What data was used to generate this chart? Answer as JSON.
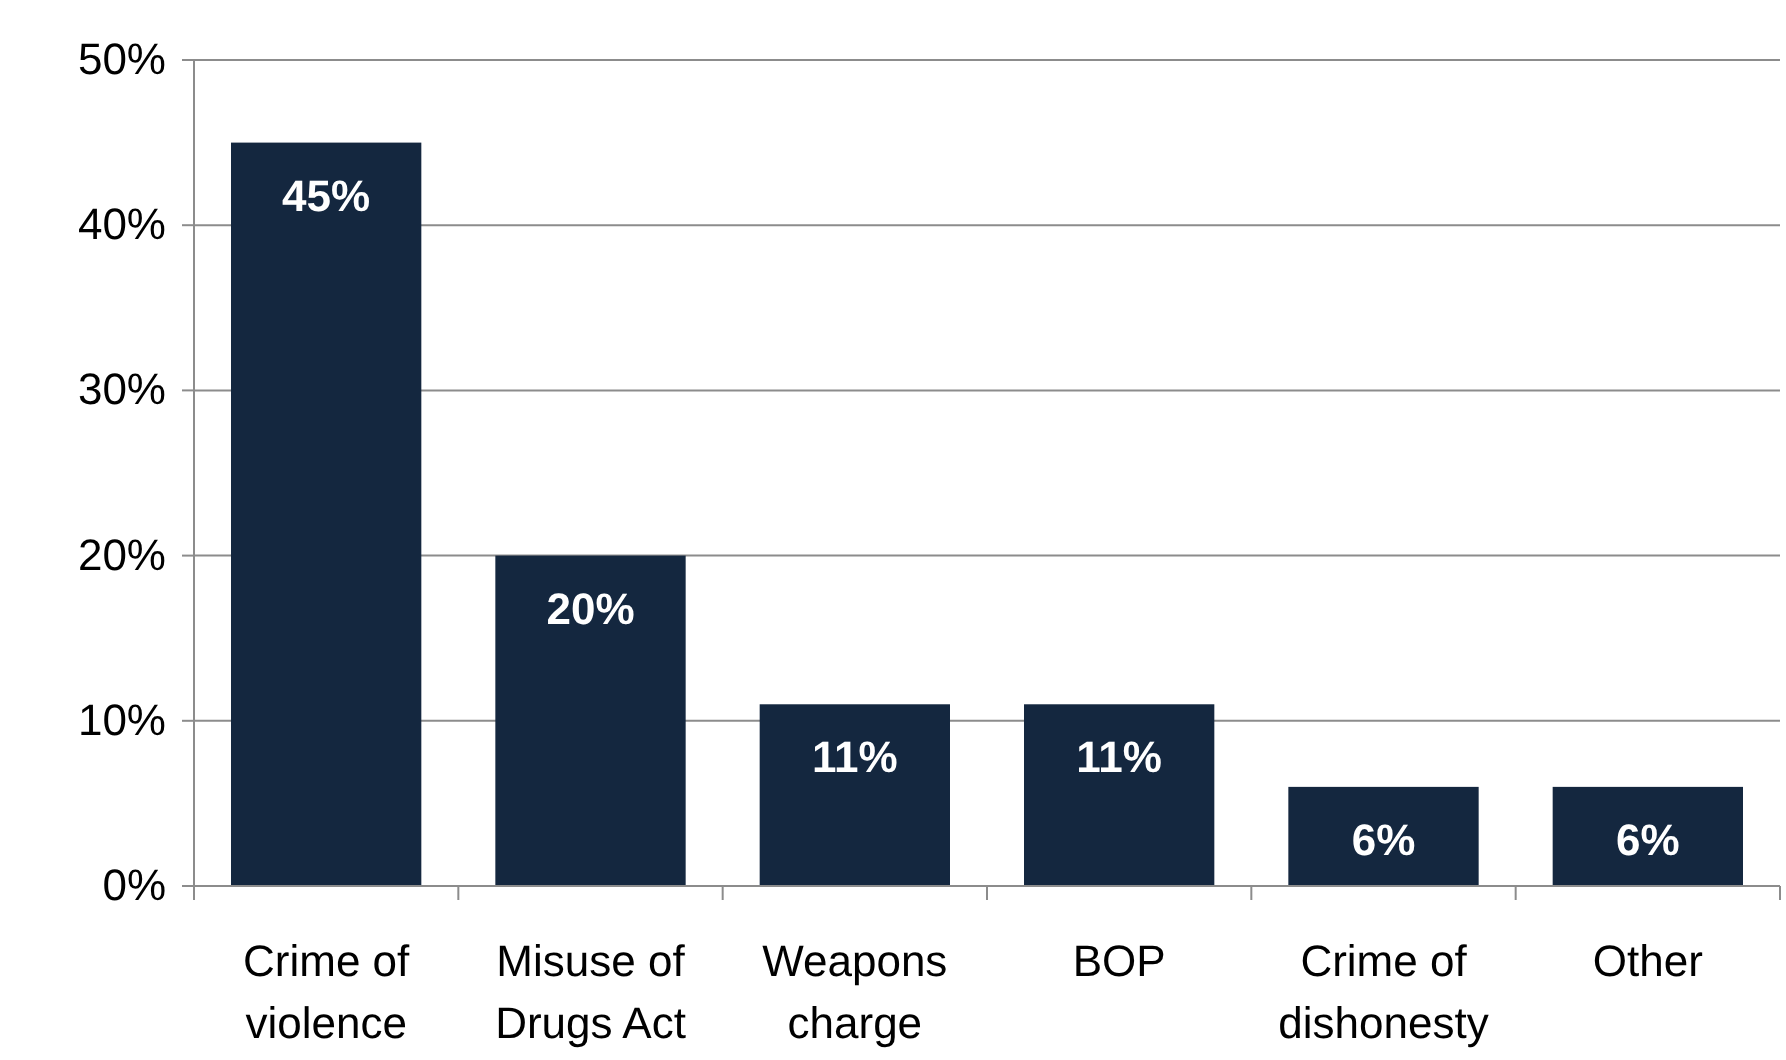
{
  "chart_data": {
    "type": "bar",
    "categories": [
      "Crime of violence",
      "Misuse of Drugs Act",
      "Weapons charge",
      "BOP",
      "Crime of dishonesty",
      "Other"
    ],
    "values": [
      45,
      20,
      11,
      11,
      6,
      6
    ],
    "value_labels": [
      "45%",
      "20%",
      "11%",
      "11%",
      "6%",
      "6%"
    ],
    "color": "#14273f",
    "ylim": [
      0,
      50
    ],
    "yticks": [
      {
        "value": 0,
        "label": "0%"
      },
      {
        "value": 10,
        "label": "10%"
      },
      {
        "value": 20,
        "label": "20%"
      },
      {
        "value": 30,
        "label": "30%"
      },
      {
        "value": 40,
        "label": "40%"
      },
      {
        "value": 50,
        "label": "50%"
      }
    ],
    "grid": "y"
  }
}
